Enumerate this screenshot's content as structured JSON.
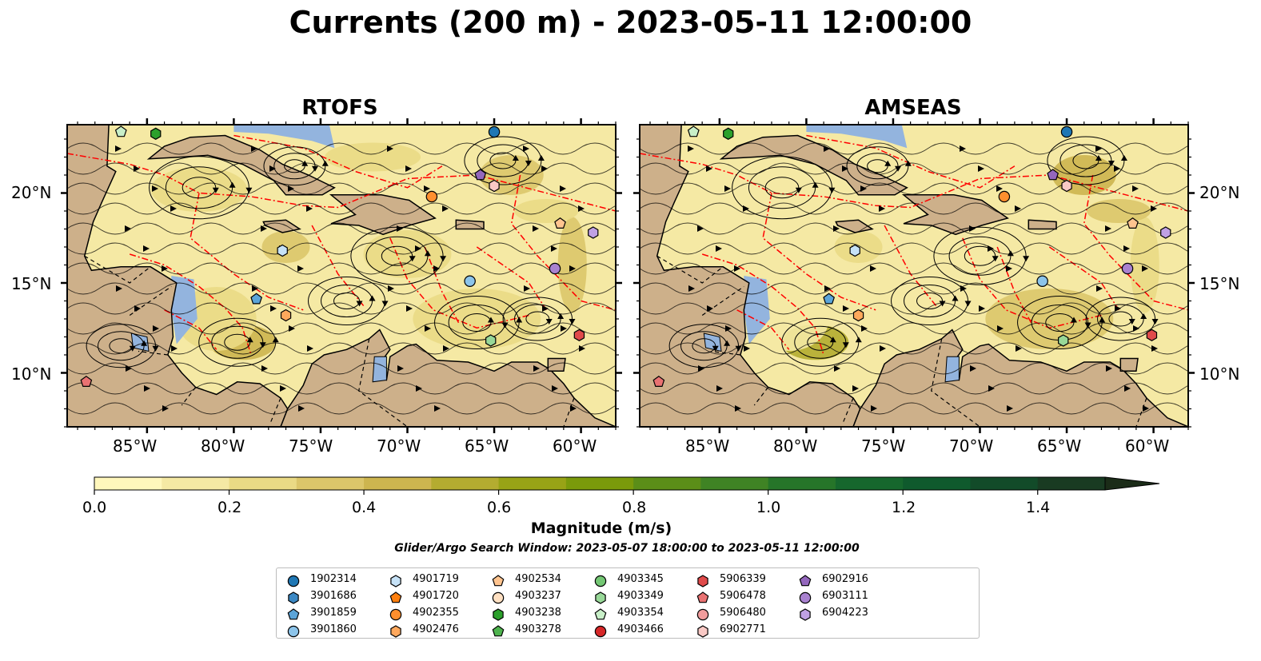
{
  "title": "Currents (200 m) - 2023-05-11 12:00:00",
  "panels": [
    {
      "id": "rtofs",
      "title": "RTOFS"
    },
    {
      "id": "amseas",
      "title": "AMSEAS"
    }
  ],
  "map": {
    "lat_ticks": [
      "20°N",
      "15°N",
      "10°N"
    ],
    "lon_ticks": [
      "85°W",
      "80°W",
      "75°W",
      "70°W",
      "65°W",
      "60°W"
    ],
    "extent": {
      "lon": [
        -89.6,
        -58.0
      ],
      "lat": [
        7.0,
        23.8
      ]
    },
    "colors": {
      "land": "#cdb08a",
      "shelf_water": "#93b4de",
      "eez_line": "#ff0000",
      "streamline": "#000000"
    }
  },
  "colorbar": {
    "label": "Magnitude (m/s)",
    "ticks": [
      "0.0",
      "0.2",
      "0.4",
      "0.6",
      "0.8",
      "1.0",
      "1.2",
      "1.4"
    ],
    "range": [
      0.0,
      1.5
    ],
    "extend": "max",
    "colors": [
      "#fff7bc",
      "#f5e9a4",
      "#eada85",
      "#dcc66a",
      "#cdb54f",
      "#b4ac30",
      "#98a316",
      "#7a9a0b",
      "#5b8e18",
      "#3f8324",
      "#267529",
      "#16672d",
      "#0f5a2d",
      "#124b29",
      "#193b22",
      "#1b2c18"
    ]
  },
  "search_window": "Glider/Argo Search Window: 2023-05-07 18:00:00 to 2023-05-11 12:00:00",
  "legend": [
    {
      "label": "1902314",
      "shape": "circle",
      "color": "#1f77b4"
    },
    {
      "label": "3901686",
      "shape": "hexagon",
      "color": "#3b88c4"
    },
    {
      "label": "3901859",
      "shape": "pentagon",
      "color": "#5ba4d8"
    },
    {
      "label": "3901860",
      "shape": "circle",
      "color": "#8cc4ea"
    },
    {
      "label": "4901719",
      "shape": "hexagon",
      "color": "#c6e2f7"
    },
    {
      "label": "4901720",
      "shape": "pentagon",
      "color": "#ff7f0e"
    },
    {
      "label": "4902355",
      "shape": "circle",
      "color": "#ff8f2e"
    },
    {
      "label": "4902476",
      "shape": "hexagon",
      "color": "#ffa85c"
    },
    {
      "label": "4902534",
      "shape": "pentagon",
      "color": "#ffc48f"
    },
    {
      "label": "4903237",
      "shape": "circle",
      "color": "#ffe0c2"
    },
    {
      "label": "4903238",
      "shape": "hexagon",
      "color": "#2ca02c"
    },
    {
      "label": "4903278",
      "shape": "pentagon",
      "color": "#4eb34e"
    },
    {
      "label": "4903345",
      "shape": "circle",
      "color": "#74c774"
    },
    {
      "label": "4903349",
      "shape": "hexagon",
      "color": "#98d898"
    },
    {
      "label": "4903354",
      "shape": "pentagon",
      "color": "#c8efc8"
    },
    {
      "label": "4903466",
      "shape": "circle",
      "color": "#d62728"
    },
    {
      "label": "5906339",
      "shape": "hexagon",
      "color": "#e04a4a"
    },
    {
      "label": "5906478",
      "shape": "pentagon",
      "color": "#e97272"
    },
    {
      "label": "5906480",
      "shape": "circle",
      "color": "#f19d9d"
    },
    {
      "label": "6902771",
      "shape": "hexagon",
      "color": "#f9c9c5"
    },
    {
      "label": "6902916",
      "shape": "pentagon",
      "color": "#9467bd"
    },
    {
      "label": "6903111",
      "shape": "circle",
      "color": "#a982d0"
    },
    {
      "label": "6904223",
      "shape": "hexagon",
      "color": "#c0a1e4"
    }
  ],
  "floats": [
    {
      "id": "1902314",
      "lon": -65.0,
      "lat": 23.4
    },
    {
      "id": "4903238",
      "lon": -84.5,
      "lat": 23.3
    },
    {
      "id": "4903354",
      "lon": -86.5,
      "lat": 23.4
    },
    {
      "id": "6902916",
      "lon": -65.8,
      "lat": 21.0
    },
    {
      "id": "6902771",
      "lon": -65.0,
      "lat": 20.4
    },
    {
      "id": "4902355",
      "lon": -68.6,
      "lat": 19.8
    },
    {
      "id": "4902534",
      "lon": -61.2,
      "lat": 18.3
    },
    {
      "id": "6904223",
      "lon": -59.3,
      "lat": 17.8
    },
    {
      "id": "4901719",
      "lon": -77.2,
      "lat": 16.8
    },
    {
      "id": "6903111",
      "lon": -61.5,
      "lat": 15.8
    },
    {
      "id": "3901860",
      "lon": -66.4,
      "lat": 15.1
    },
    {
      "id": "3901859",
      "lon": -78.7,
      "lat": 14.1
    },
    {
      "id": "4902476",
      "lon": -77.0,
      "lat": 13.2
    },
    {
      "id": "5906339",
      "lon": -60.1,
      "lat": 12.1
    },
    {
      "id": "4903349",
      "lon": -65.2,
      "lat": 11.8
    },
    {
      "id": "5906478",
      "lon": -88.5,
      "lat": 9.5
    }
  ]
}
